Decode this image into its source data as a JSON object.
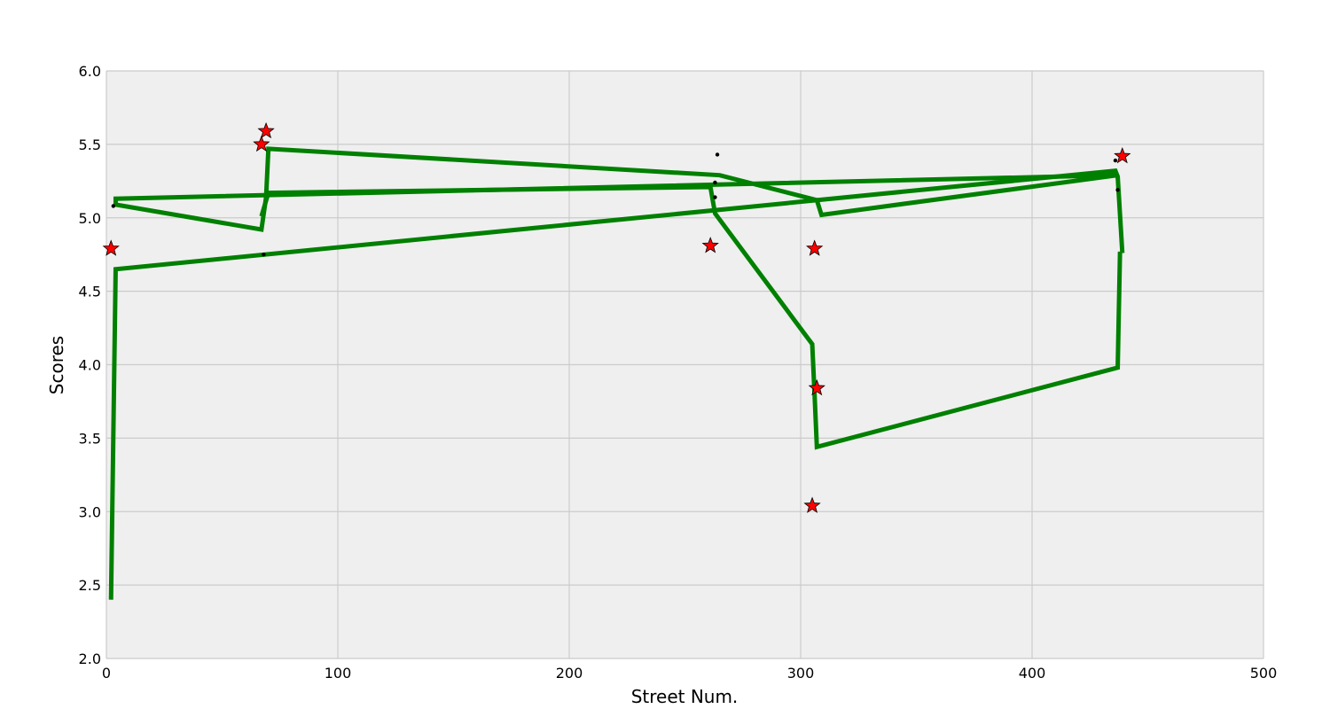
{
  "chart_data": {
    "type": "line",
    "title": "",
    "xlabel": "Street Num.",
    "ylabel": "Scores",
    "xlim": [
      0,
      500
    ],
    "ylim": [
      2.0,
      6.0
    ],
    "xticks": [
      0,
      100,
      200,
      300,
      400,
      500
    ],
    "xtick_labels": [
      "0",
      "100",
      "200",
      "300",
      "400",
      "500"
    ],
    "yticks": [
      2.0,
      2.5,
      3.0,
      3.5,
      4.0,
      4.5,
      5.0,
      5.5,
      6.0
    ],
    "ytick_labels": [
      "2.0",
      "2.5",
      "3.0",
      "3.5",
      "4.0",
      "4.5",
      "5.0",
      "5.5",
      "6.0"
    ],
    "grid": true,
    "colors": {
      "background": "#efefef",
      "grid": "#cbcbcb",
      "line": "#008000",
      "star_fill": "#ff0000",
      "star_edge": "#000000",
      "dot": "#000000"
    },
    "series": [
      {
        "kind": "line",
        "x": [
          2,
          4,
          436,
          437,
          439
        ],
        "y": [
          2.4,
          4.65,
          5.32,
          5.28,
          4.76
        ]
      },
      {
        "kind": "line",
        "x": [
          437,
          309,
          307,
          265,
          70,
          69,
          67,
          4,
          4,
          437
        ],
        "y": [
          5.29,
          5.02,
          5.12,
          5.29,
          5.47,
          5.14,
          4.92,
          5.09,
          5.13,
          5.29
        ]
      },
      {
        "kind": "line",
        "x": [
          67,
          70,
          261,
          263,
          305,
          306,
          307,
          437,
          438
        ],
        "y": [
          5.01,
          5.17,
          5.21,
          5.03,
          4.14,
          3.8,
          3.44,
          3.98,
          4.77
        ]
      },
      {
        "kind": "scatter",
        "marker": "star",
        "x": [
          2,
          67,
          69,
          261,
          306,
          307,
          305,
          439
        ],
        "y": [
          4.79,
          5.5,
          5.59,
          4.81,
          4.79,
          3.84,
          3.04,
          5.42
        ]
      },
      {
        "kind": "scatter",
        "marker": "dot",
        "x": [
          3,
          68,
          264,
          263,
          263,
          436,
          437
        ],
        "y": [
          5.08,
          4.75,
          5.43,
          5.24,
          5.14,
          5.39,
          5.19
        ]
      }
    ]
  }
}
